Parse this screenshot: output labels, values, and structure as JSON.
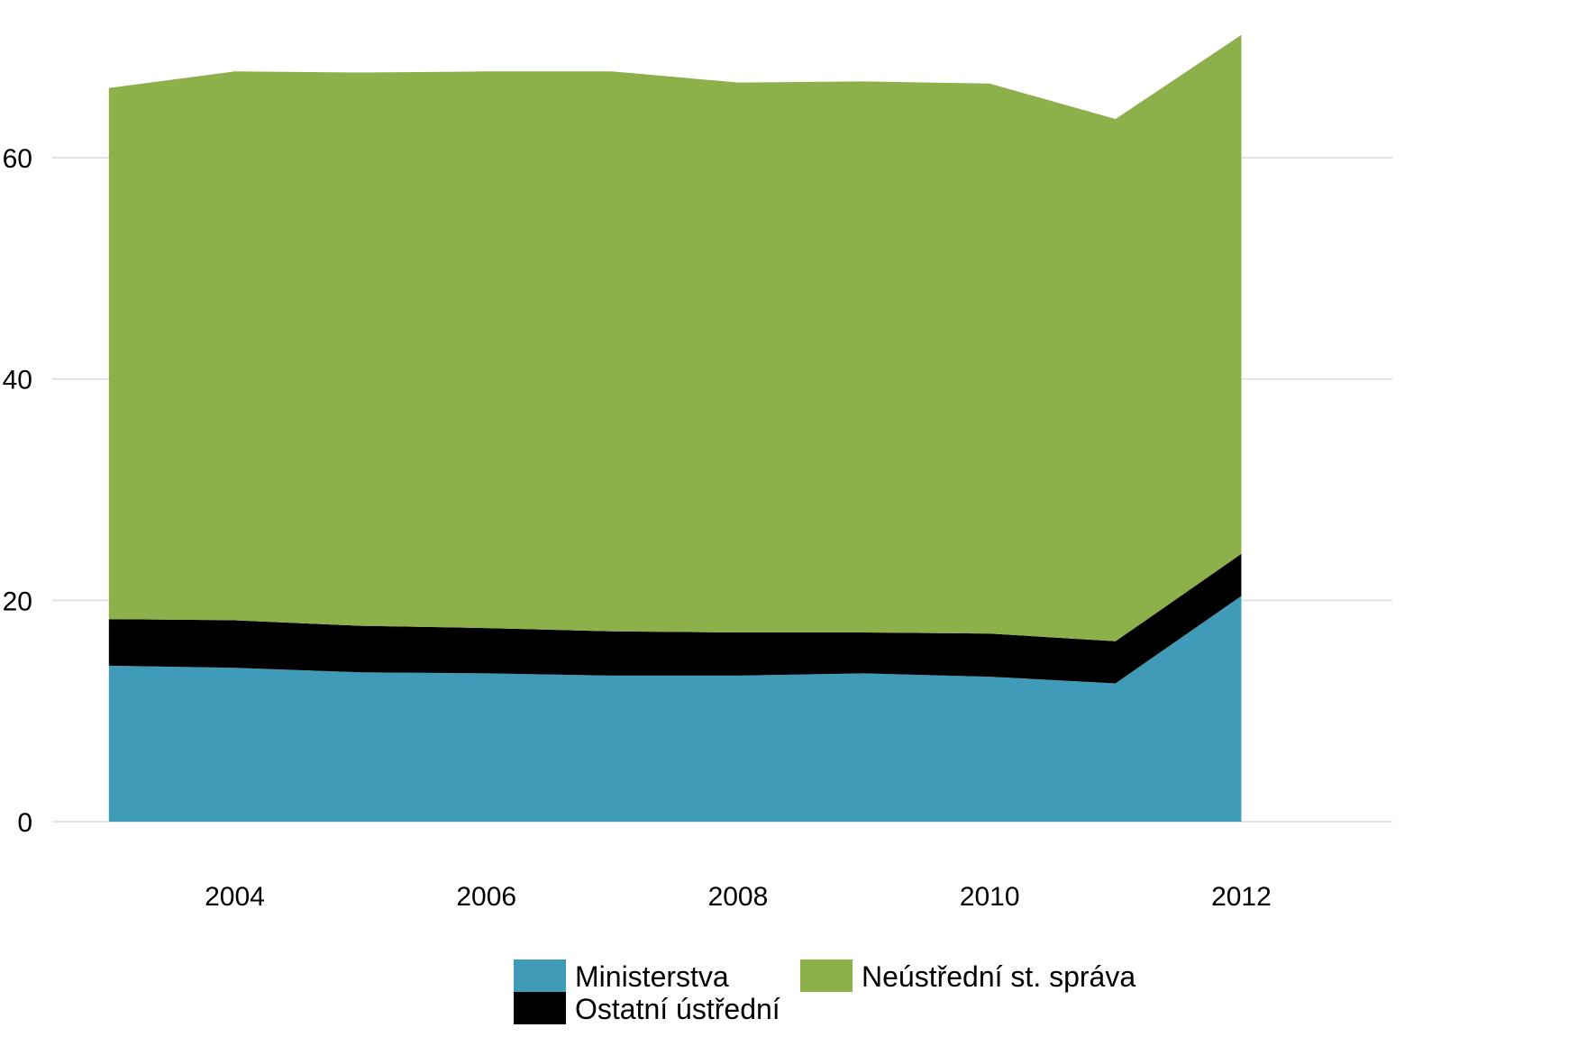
{
  "chart_data": {
    "type": "area",
    "stacked": true,
    "title": "",
    "xlabel": "",
    "ylabel": "",
    "x": [
      2003,
      2004,
      2005,
      2006,
      2007,
      2008,
      2009,
      2010,
      2011,
      2012
    ],
    "xticks": [
      "2004",
      "2006",
      "2008",
      "2010",
      "2012"
    ],
    "yticks": [
      "0",
      "20",
      "40",
      "60"
    ],
    "xlim": [
      2002.55,
      2013.2
    ],
    "ylim": [
      0,
      71
    ],
    "grid": "horizontal",
    "legend_position": "bottom",
    "series": [
      {
        "name": "Ministerstva",
        "color": "#3f9bb8",
        "values": [
          14.1,
          13.9,
          13.5,
          13.4,
          13.2,
          13.2,
          13.4,
          13.1,
          12.5,
          20.4
        ]
      },
      {
        "name": "Ostatní ústřední",
        "color": "#000000",
        "values": [
          4.2,
          4.3,
          4.2,
          4.1,
          4.0,
          3.9,
          3.7,
          3.9,
          3.8,
          3.8
        ]
      },
      {
        "name": "Neústřední st. správa",
        "color": "#8cb04a",
        "values": [
          48.0,
          49.6,
          50.0,
          50.3,
          50.6,
          49.7,
          49.8,
          49.7,
          47.2,
          46.9
        ]
      }
    ],
    "legend": [
      {
        "label": "Ministerstva",
        "color": "#3f9bb8"
      },
      {
        "label": "Neústřední st. správa",
        "color": "#8cb04a"
      },
      {
        "label": "Ostatní ústřední",
        "color": "#000000"
      }
    ]
  }
}
